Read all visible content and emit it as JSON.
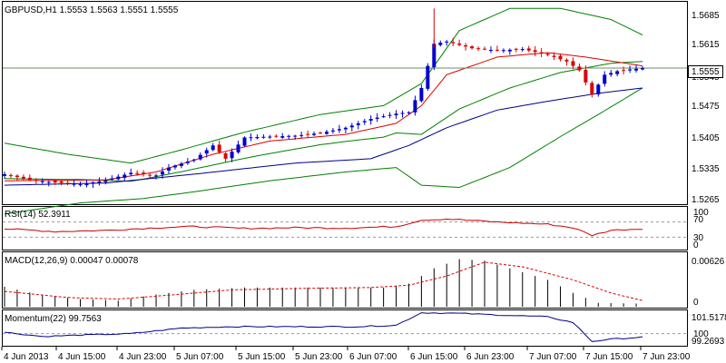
{
  "window": {
    "symbol_header": "GBPUSD,H1  1.5553 1.5563 1.5551 1.5555"
  },
  "colors": {
    "bull_candle": "#0000cc",
    "bear_candle": "#dd0000",
    "bollinger": "#008000",
    "ma_fast": "#dd0000",
    "ma_slow": "#00008b",
    "rsi_line": "#cc0000",
    "macd_hist": "#000000",
    "macd_signal": "#dd0000",
    "momentum_line": "#00008b",
    "grid_dash": "#999999",
    "frame": "#000000",
    "price_tag_bg": "#ffffff"
  },
  "price_panel": {
    "current_price": "1.5555",
    "y_ticks": [
      "1.5685",
      "1.5615",
      "1.5545",
      "1.5475",
      "1.5405",
      "1.5335",
      "1.5265"
    ]
  },
  "rsi_panel": {
    "label": "RSI(14) 52.3911",
    "levels": [
      "100",
      "70",
      "30",
      "0"
    ]
  },
  "macd_panel": {
    "label": "MACD(12,26,9) 0.00047 0.00078",
    "y_ticks": [
      "0.00626",
      "0"
    ]
  },
  "momentum_panel": {
    "label": "Momentum(22) 99.7563",
    "y_ticks": [
      "101.5178",
      "100",
      "99.2693"
    ]
  },
  "x_axis": {
    "labels": [
      "4 Jun 2013",
      "4 Jun 15:00",
      "4 Jun 23:00",
      "5 Jun 07:00",
      "5 Jun 15:00",
      "5 Jun 23:00",
      "6 Jun 07:00",
      "6 Jun 15:00",
      "6 Jun 23:00",
      "7 Jun 07:00",
      "7 Jun 15:00",
      "7 Jun 23:00"
    ]
  },
  "chart_data": {
    "type": "candlestick",
    "symbol": "GBPUSD",
    "timeframe": "H1",
    "price_range": [
      1.5245,
      1.5705
    ],
    "anchors": {
      "close": [
        [
          0,
          1.5315
        ],
        [
          4,
          1.5302
        ],
        [
          8,
          1.5296
        ],
        [
          12,
          1.5292
        ],
        [
          16,
          1.5301
        ],
        [
          20,
          1.5318
        ],
        [
          24,
          1.5312
        ],
        [
          26,
          1.533
        ],
        [
          30,
          1.5348
        ],
        [
          33,
          1.538
        ],
        [
          35,
          1.535
        ],
        [
          38,
          1.5398
        ],
        [
          42,
          1.54
        ],
        [
          46,
          1.5402
        ],
        [
          50,
          1.5408
        ],
        [
          54,
          1.542
        ],
        [
          58,
          1.544
        ],
        [
          62,
          1.5452
        ],
        [
          64,
          1.5455
        ],
        [
          66,
          1.551
        ],
        [
          68,
          1.561
        ],
        [
          70,
          1.5615
        ],
        [
          74,
          1.56
        ],
        [
          78,
          1.5595
        ],
        [
          82,
          1.5598
        ],
        [
          86,
          1.5585
        ],
        [
          89,
          1.557
        ],
        [
          91,
          1.555
        ],
        [
          93,
          1.5495
        ],
        [
          95,
          1.554
        ],
        [
          97,
          1.5548
        ],
        [
          99,
          1.5552
        ],
        [
          101,
          1.5555
        ]
      ],
      "ma_fast": [
        [
          0,
          1.53
        ],
        [
          16,
          1.5302
        ],
        [
          24,
          1.532
        ],
        [
          33,
          1.536
        ],
        [
          42,
          1.539
        ],
        [
          54,
          1.5405
        ],
        [
          62,
          1.543
        ],
        [
          66,
          1.547
        ],
        [
          70,
          1.554
        ],
        [
          78,
          1.558
        ],
        [
          86,
          1.559
        ],
        [
          92,
          1.558
        ],
        [
          101,
          1.556
        ]
      ],
      "ma_slow": [
        [
          0,
          1.529
        ],
        [
          16,
          1.5295
        ],
        [
          30,
          1.5315
        ],
        [
          46,
          1.534
        ],
        [
          58,
          1.535
        ],
        [
          64,
          1.538
        ],
        [
          70,
          1.542
        ],
        [
          78,
          1.546
        ],
        [
          86,
          1.548
        ],
        [
          94,
          1.5498
        ],
        [
          101,
          1.551
        ]
      ],
      "bb_upper": [
        [
          0,
          1.5385
        ],
        [
          10,
          1.536
        ],
        [
          20,
          1.534
        ],
        [
          28,
          1.537
        ],
        [
          38,
          1.541
        ],
        [
          50,
          1.545
        ],
        [
          60,
          1.547
        ],
        [
          66,
          1.552
        ],
        [
          72,
          1.564
        ],
        [
          80,
          1.569
        ],
        [
          88,
          1.569
        ],
        [
          96,
          1.5665
        ],
        [
          101,
          1.563
        ]
      ],
      "bb_lower": [
        [
          0,
          1.5225
        ],
        [
          12,
          1.525
        ],
        [
          22,
          1.526
        ],
        [
          30,
          1.5275
        ],
        [
          42,
          1.53
        ],
        [
          54,
          1.532
        ],
        [
          62,
          1.533
        ],
        [
          66,
          1.529
        ],
        [
          72,
          1.5285
        ],
        [
          80,
          1.533
        ],
        [
          88,
          1.54
        ],
        [
          94,
          1.545
        ],
        [
          101,
          1.551
        ]
      ],
      "rsi": [
        [
          0,
          52
        ],
        [
          8,
          45
        ],
        [
          16,
          48
        ],
        [
          24,
          55
        ],
        [
          30,
          58
        ],
        [
          38,
          53
        ],
        [
          46,
          55
        ],
        [
          54,
          54
        ],
        [
          62,
          58
        ],
        [
          66,
          75
        ],
        [
          70,
          78
        ],
        [
          78,
          70
        ],
        [
          86,
          64
        ],
        [
          90,
          55
        ],
        [
          93,
          35
        ],
        [
          96,
          48
        ],
        [
          101,
          52.3911
        ]
      ],
      "macd_hist": [
        [
          0,
          0.0026
        ],
        [
          6,
          0.0015
        ],
        [
          12,
          0.001
        ],
        [
          18,
          0.0008
        ],
        [
          24,
          0.0016
        ],
        [
          30,
          0.0022
        ],
        [
          38,
          0.0025
        ],
        [
          46,
          0.0025
        ],
        [
          54,
          0.0025
        ],
        [
          60,
          0.0025
        ],
        [
          64,
          0.003
        ],
        [
          68,
          0.005
        ],
        [
          72,
          0.0062
        ],
        [
          76,
          0.006
        ],
        [
          80,
          0.005
        ],
        [
          86,
          0.0035
        ],
        [
          90,
          0.0018
        ],
        [
          94,
          0.0005
        ],
        [
          101,
          0.0004
        ]
      ],
      "macd_signal": [
        [
          0,
          0.002
        ],
        [
          10,
          0.0012
        ],
        [
          18,
          0.001
        ],
        [
          26,
          0.0015
        ],
        [
          36,
          0.0022
        ],
        [
          48,
          0.0024
        ],
        [
          58,
          0.0025
        ],
        [
          64,
          0.0028
        ],
        [
          70,
          0.004
        ],
        [
          76,
          0.0058
        ],
        [
          82,
          0.0052
        ],
        [
          90,
          0.0035
        ],
        [
          96,
          0.0018
        ],
        [
          101,
          0.0008
        ]
      ],
      "momentum": [
        [
          0,
          100.1
        ],
        [
          6,
          99.8
        ],
        [
          12,
          99.9
        ],
        [
          20,
          100.0
        ],
        [
          28,
          100.4
        ],
        [
          36,
          100.5
        ],
        [
          46,
          100.5
        ],
        [
          56,
          100.5
        ],
        [
          62,
          100.6
        ],
        [
          66,
          101.5
        ],
        [
          72,
          101.45
        ],
        [
          80,
          101.3
        ],
        [
          86,
          101.2
        ],
        [
          90,
          100.8
        ],
        [
          93,
          99.45
        ],
        [
          96,
          99.6
        ],
        [
          101,
          99.76
        ]
      ]
    }
  }
}
